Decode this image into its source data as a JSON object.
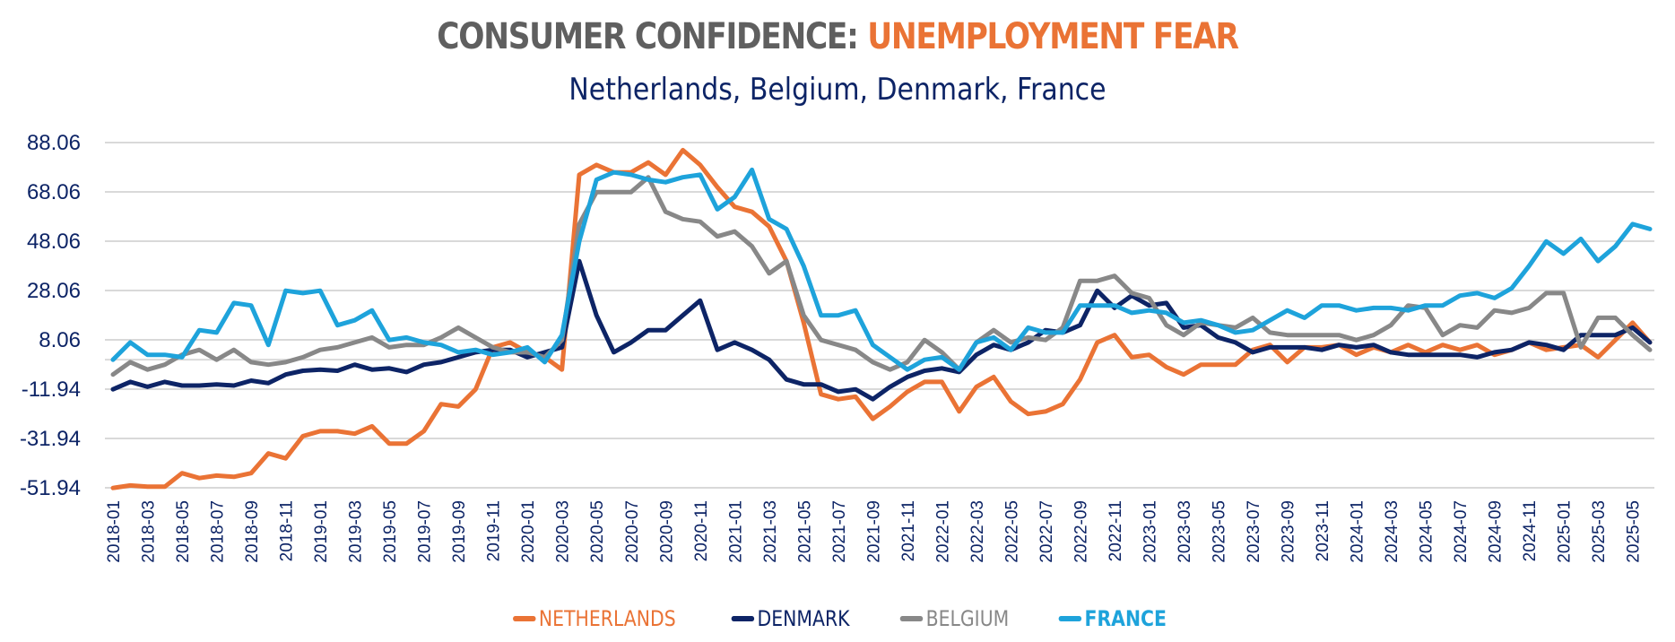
{
  "chart_data": {
    "type": "line",
    "title": "CONSUMER CONFIDENCE: UNEMPLOYMENT FEAR",
    "title_parts": [
      {
        "text": "CONSUMER CONFIDENCE: ",
        "color": "#5f5f5f"
      },
      {
        "text": "UNEMPLOYMENT FEAR",
        "color": "#ea7335"
      }
    ],
    "subtitle": "Netherlands, Belgium, Denmark, France",
    "xlabel": "",
    "ylabel": "",
    "ylim": [
      -51.94,
      88.06
    ],
    "yticks": [
      88.06,
      68.06,
      48.06,
      28.06,
      8.06,
      -11.94,
      -31.94,
      -51.94
    ],
    "ytick_labels": [
      "88.06",
      "68.06",
      "48.06",
      "28.06",
      "8.06",
      "-11.94",
      "-31.94",
      "-51.94"
    ],
    "grid": true,
    "legend_position": "bottom",
    "x": [
      "2018-01",
      "2018-02",
      "2018-03",
      "2018-04",
      "2018-05",
      "2018-06",
      "2018-07",
      "2018-08",
      "2018-09",
      "2018-10",
      "2018-11",
      "2018-12",
      "2019-01",
      "2019-02",
      "2019-03",
      "2019-04",
      "2019-05",
      "2019-06",
      "2019-07",
      "2019-08",
      "2019-09",
      "2019-10",
      "2019-11",
      "2019-12",
      "2020-01",
      "2020-02",
      "2020-03",
      "2020-04",
      "2020-05",
      "2020-06",
      "2020-07",
      "2020-08",
      "2020-09",
      "2020-10",
      "2020-11",
      "2020-12",
      "2021-01",
      "2021-02",
      "2021-03",
      "2021-04",
      "2021-05",
      "2021-06",
      "2021-07",
      "2021-08",
      "2021-09",
      "2021-10",
      "2021-11",
      "2021-12",
      "2022-01",
      "2022-02",
      "2022-03",
      "2022-04",
      "2022-05",
      "2022-06",
      "2022-07",
      "2022-08",
      "2022-09",
      "2022-10",
      "2022-11",
      "2022-12",
      "2023-01",
      "2023-02",
      "2023-03",
      "2023-04",
      "2023-05",
      "2023-06",
      "2023-07",
      "2023-08",
      "2023-09",
      "2023-10",
      "2023-11",
      "2023-12",
      "2024-01",
      "2024-02",
      "2024-03",
      "2024-04",
      "2024-05",
      "2024-06",
      "2024-07",
      "2024-08",
      "2024-09",
      "2024-10",
      "2024-11",
      "2024-12",
      "2025-01",
      "2025-02",
      "2025-03",
      "2025-04",
      "2025-05",
      "2025-06"
    ],
    "xtick_labels": [
      "2018-01",
      "2018-03",
      "2018-05",
      "2018-07",
      "2018-09",
      "2018-11",
      "2019-01",
      "2019-03",
      "2019-05",
      "2019-07",
      "2019-09",
      "2019-11",
      "2020-01",
      "2020-03",
      "2020-05",
      "2020-07",
      "2020-09",
      "2020-11",
      "2021-01",
      "2021-03",
      "2021-05",
      "2021-07",
      "2021-09",
      "2021-11",
      "2022-01",
      "2022-03",
      "2022-05",
      "2022-07",
      "2022-09",
      "2022-11",
      "2023-01",
      "2023-03",
      "2023-05",
      "2023-07",
      "2023-09",
      "2023-11",
      "2024-01",
      "2024-03",
      "2024-05",
      "2024-07",
      "2024-09",
      "2024-11",
      "2025-01",
      "2025-03",
      "2025-05"
    ],
    "series": [
      {
        "name": "NETHERLANDS",
        "color": "#ea7335",
        "values": [
          -52,
          -51,
          -51.5,
          -51.5,
          -46,
          -48,
          -47,
          -47.5,
          -46,
          -38,
          -40,
          -31,
          -29,
          -29,
          -30,
          -27,
          -34,
          -34,
          -29,
          -18,
          -19,
          -12,
          5,
          7,
          3,
          1,
          -4,
          75,
          79,
          76,
          76,
          80,
          75,
          85,
          79,
          70,
          62,
          60,
          54,
          40,
          15,
          -14,
          -16,
          -15,
          -24,
          -19,
          -13,
          -9,
          -9,
          -21,
          -11,
          -7,
          -17,
          -22,
          -21,
          -18,
          -8,
          7,
          10,
          1,
          2,
          -3,
          -6,
          -2,
          -2,
          -2,
          4,
          6,
          -1,
          5,
          5,
          6,
          2,
          5,
          3,
          6,
          3,
          6,
          4,
          6,
          2,
          4,
          7,
          4,
          5,
          6,
          1,
          8,
          15,
          7
        ]
      },
      {
        "name": "DENMARK",
        "color": "#0d2466",
        "values": [
          -12,
          -9,
          -11,
          -9,
          -10.5,
          -10.5,
          -10,
          -10.5,
          -8.5,
          -9.5,
          -6,
          -4.5,
          -4,
          -4.5,
          -2,
          -4,
          -3.5,
          -5,
          -2,
          -1,
          1,
          3,
          4,
          4,
          1,
          3,
          5,
          40,
          18,
          3,
          7,
          12,
          12,
          18,
          24,
          4,
          7,
          4,
          0,
          -8,
          -10,
          -10,
          -13,
          -12,
          -16,
          -11,
          -7,
          -4.5,
          -3.5,
          -5,
          2,
          6,
          4,
          7,
          12,
          11,
          14,
          28,
          21,
          26,
          22,
          23,
          13,
          14,
          9,
          7,
          3,
          5,
          5,
          5,
          4,
          6,
          5,
          6,
          3,
          2,
          2,
          2,
          2,
          1,
          3,
          4,
          7,
          6,
          4,
          10,
          10,
          10,
          13,
          7
        ]
      },
      {
        "name": "BELGIUM",
        "color": "#888888",
        "values": [
          -6,
          -1,
          -4,
          -2,
          2,
          4,
          0,
          4,
          -1,
          -2,
          -1,
          1,
          4,
          5,
          7,
          9,
          5,
          6,
          6,
          9,
          13,
          9,
          5,
          3,
          3,
          1,
          8,
          55,
          68,
          68,
          68,
          74,
          60,
          57,
          56,
          50,
          52,
          46,
          35,
          40,
          18,
          8,
          6,
          4,
          -1,
          -4,
          -1,
          8,
          3,
          -4,
          7,
          12,
          7,
          9,
          8,
          13,
          32,
          32,
          34,
          27,
          25,
          14,
          10,
          15,
          14,
          13,
          17,
          11,
          10,
          10,
          10,
          10,
          8,
          10,
          14,
          22,
          21,
          10,
          14,
          13,
          20,
          19,
          21,
          27,
          27,
          5,
          17,
          17,
          10,
          4
        ]
      },
      {
        "name": "FRANCE",
        "color": "#1ea3db",
        "values": [
          0,
          7,
          2,
          2,
          1,
          12,
          11,
          23,
          22,
          6,
          28,
          27,
          28,
          14,
          16,
          20,
          8,
          9,
          7,
          6,
          3,
          4,
          2,
          3,
          5,
          -1,
          10,
          48,
          73,
          76,
          75,
          73,
          72,
          74,
          75,
          61,
          66,
          77,
          57,
          53,
          38,
          18,
          18,
          20,
          6,
          1,
          -4,
          0,
          1,
          -4,
          7,
          9,
          4,
          13,
          11,
          11,
          22,
          22,
          22,
          19,
          20,
          19,
          15,
          16,
          14,
          11,
          12,
          16,
          20,
          17,
          22,
          22,
          20,
          21,
          21,
          20,
          22,
          22,
          26,
          27,
          25,
          29,
          38,
          48,
          43,
          49,
          40,
          46,
          55,
          53
        ]
      }
    ]
  },
  "legend": [
    {
      "label": "NETHERLANDS",
      "color": "#ea7335"
    },
    {
      "label": "DENMARK",
      "color": "#0d2466"
    },
    {
      "label": "BELGIUM",
      "color": "#888888"
    },
    {
      "label": "FRANCE",
      "color": "#1ea3db"
    }
  ]
}
